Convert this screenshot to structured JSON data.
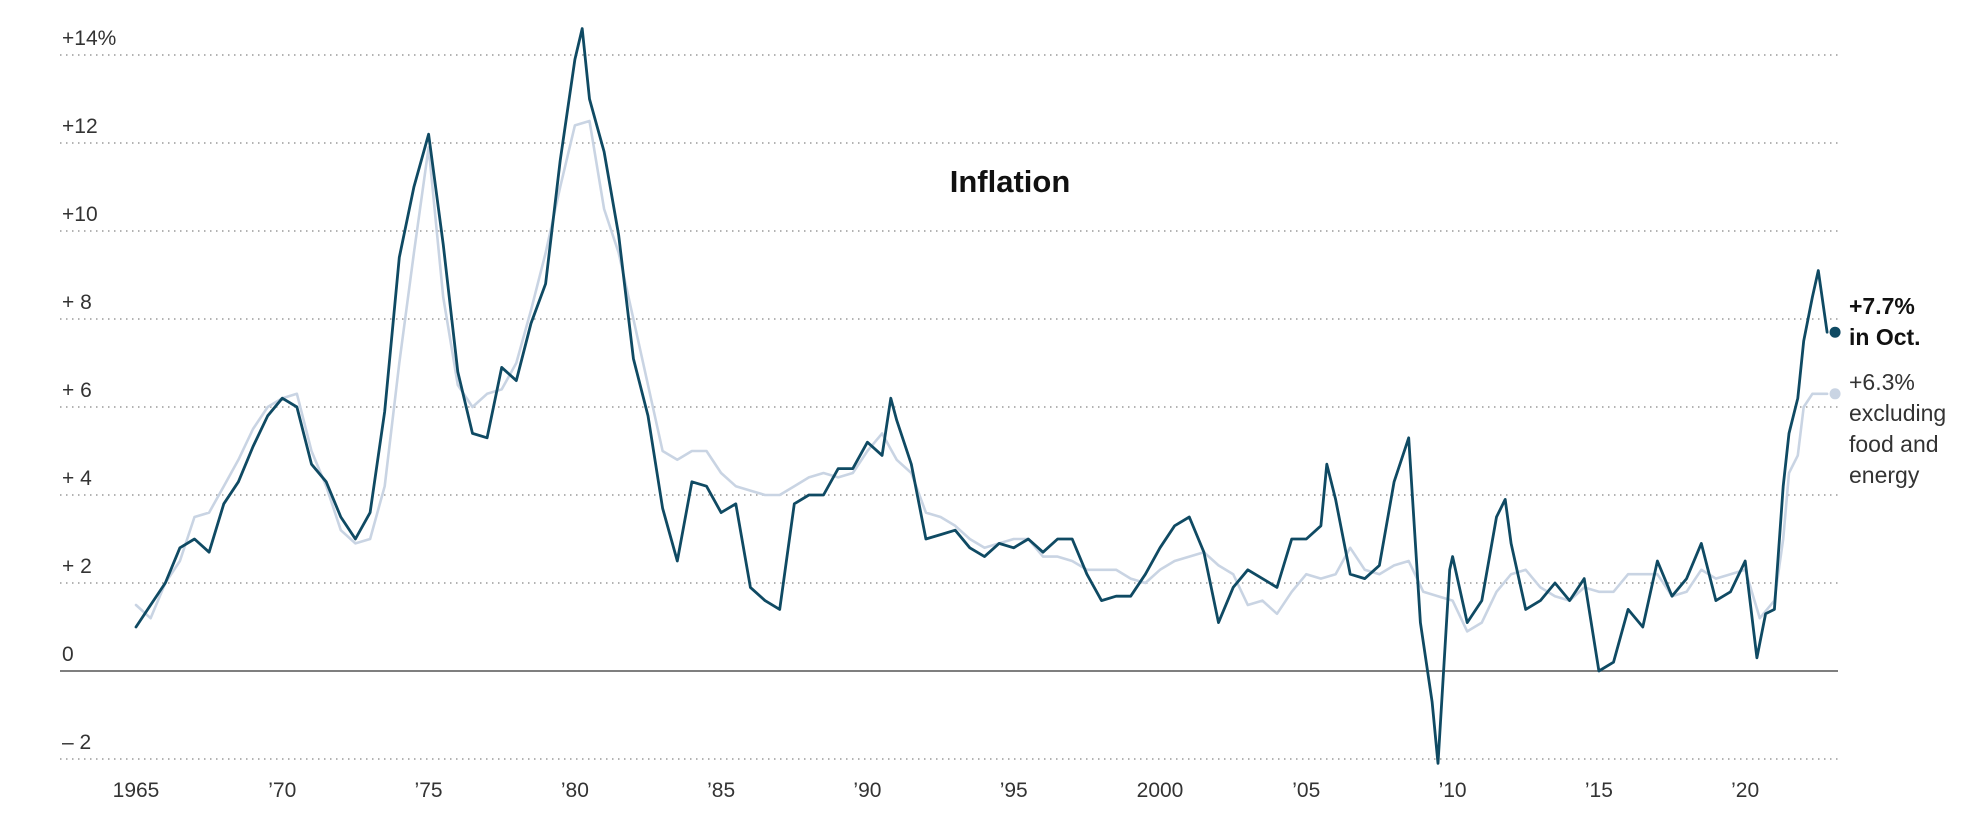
{
  "chart_data": {
    "type": "line",
    "title": "Inflation",
    "xlabel": "",
    "ylabel": "",
    "xlim": [
      1965.0,
      2022.9
    ],
    "ylim": [
      -2.2,
      14.7
    ],
    "y_ticks": [
      {
        "value": 14,
        "label": "+14%"
      },
      {
        "value": 12,
        "label": "+12"
      },
      {
        "value": 10,
        "label": "+10"
      },
      {
        "value": 8,
        "label": "+ 8"
      },
      {
        "value": 6,
        "label": "+ 6"
      },
      {
        "value": 4,
        "label": "+ 4"
      },
      {
        "value": 2,
        "label": "+ 2"
      },
      {
        "value": 0,
        "label": "0"
      },
      {
        "value": -2,
        "label": "– 2"
      }
    ],
    "x_ticks": [
      {
        "value": 1965,
        "label": "1965"
      },
      {
        "value": 1970,
        "label": "’70"
      },
      {
        "value": 1975,
        "label": "’75"
      },
      {
        "value": 1980,
        "label": "’80"
      },
      {
        "value": 1985,
        "label": "’85"
      },
      {
        "value": 1990,
        "label": "’90"
      },
      {
        "value": 1995,
        "label": "’95"
      },
      {
        "value": 2000,
        "label": "2000"
      },
      {
        "value": 2005,
        "label": "’05"
      },
      {
        "value": 2010,
        "label": "’10"
      },
      {
        "value": 2015,
        "label": "’15"
      },
      {
        "value": 2020,
        "label": "’20"
      }
    ],
    "grid": true,
    "series": [
      {
        "name": "",
        "color": "#0f4a63",
        "annotation": [
          "+7.7%",
          "in Oct."
        ],
        "x": [
          1965.0,
          1965.5,
          1966.0,
          1966.5,
          1967.0,
          1967.5,
          1968.0,
          1968.5,
          1969.0,
          1969.5,
          1970.0,
          1970.5,
          1971.0,
          1971.5,
          1972.0,
          1972.5,
          1973.0,
          1973.5,
          1974.0,
          1974.5,
          1975.0,
          1975.5,
          1976.0,
          1976.5,
          1977.0,
          1977.5,
          1978.0,
          1978.5,
          1979.0,
          1979.5,
          1980.0,
          1980.25,
          1980.5,
          1981.0,
          1981.5,
          1982.0,
          1982.5,
          1983.0,
          1983.5,
          1984.0,
          1984.5,
          1985.0,
          1985.5,
          1986.0,
          1986.5,
          1987.0,
          1987.5,
          1988.0,
          1988.5,
          1989.0,
          1989.5,
          1990.0,
          1990.5,
          1990.8,
          1991.0,
          1991.5,
          1992.0,
          1992.5,
          1993.0,
          1993.5,
          1994.0,
          1994.5,
          1995.0,
          1995.5,
          1996.0,
          1996.5,
          1997.0,
          1997.5,
          1998.0,
          1998.5,
          1999.0,
          1999.5,
          2000.0,
          2000.5,
          2001.0,
          2001.5,
          2002.0,
          2002.5,
          2003.0,
          2003.5,
          2004.0,
          2004.5,
          2005.0,
          2005.5,
          2005.7,
          2006.0,
          2006.5,
          2007.0,
          2007.5,
          2008.0,
          2008.5,
          2008.9,
          2009.3,
          2009.5,
          2009.9,
          2010.0,
          2010.5,
          2011.0,
          2011.5,
          2011.8,
          2012.0,
          2012.5,
          2013.0,
          2013.5,
          2014.0,
          2014.5,
          2015.0,
          2015.5,
          2016.0,
          2016.5,
          2017.0,
          2017.5,
          2018.0,
          2018.5,
          2019.0,
          2019.5,
          2020.0,
          2020.4,
          2020.7,
          2021.0,
          2021.3,
          2021.5,
          2021.8,
          2022.0,
          2022.3,
          2022.5,
          2022.8
        ],
        "y": [
          1.0,
          1.5,
          2.0,
          2.8,
          3.0,
          2.7,
          3.8,
          4.3,
          5.1,
          5.8,
          6.2,
          6.0,
          4.7,
          4.3,
          3.5,
          3.0,
          3.6,
          5.9,
          9.4,
          11.0,
          12.2,
          9.7,
          6.8,
          5.4,
          5.3,
          6.9,
          6.6,
          7.9,
          8.8,
          11.6,
          13.9,
          14.6,
          13.0,
          11.8,
          9.9,
          7.1,
          5.8,
          3.7,
          2.5,
          4.3,
          4.2,
          3.6,
          3.8,
          1.9,
          1.6,
          1.4,
          3.8,
          4.0,
          4.0,
          4.6,
          4.6,
          5.2,
          4.9,
          6.2,
          5.7,
          4.7,
          3.0,
          3.1,
          3.2,
          2.8,
          2.6,
          2.9,
          2.8,
          3.0,
          2.7,
          3.0,
          3.0,
          2.2,
          1.6,
          1.7,
          1.7,
          2.2,
          2.8,
          3.3,
          3.5,
          2.7,
          1.1,
          1.9,
          2.3,
          2.1,
          1.9,
          3.0,
          3.0,
          3.3,
          4.7,
          3.9,
          2.2,
          2.1,
          2.4,
          4.3,
          5.3,
          1.1,
          -0.7,
          -2.1,
          2.3,
          2.6,
          1.1,
          1.6,
          3.5,
          3.9,
          2.9,
          1.4,
          1.6,
          2.0,
          1.6,
          2.1,
          0.0,
          0.2,
          1.4,
          1.0,
          2.5,
          1.7,
          2.1,
          2.9,
          1.6,
          1.8,
          2.5,
          0.3,
          1.3,
          1.4,
          4.2,
          5.4,
          6.2,
          7.5,
          8.5,
          9.1,
          7.7
        ]
      },
      {
        "name": "",
        "color": "#c9d4e3",
        "annotation": [
          "+6.3%",
          "excluding",
          "food and",
          "energy"
        ],
        "x": [
          1965.0,
          1965.5,
          1966.0,
          1966.5,
          1967.0,
          1967.5,
          1968.0,
          1968.5,
          1969.0,
          1969.5,
          1970.0,
          1970.5,
          1971.0,
          1971.5,
          1972.0,
          1972.5,
          1973.0,
          1973.5,
          1974.0,
          1974.5,
          1975.0,
          1975.5,
          1976.0,
          1976.5,
          1977.0,
          1977.5,
          1978.0,
          1978.5,
          1979.0,
          1979.5,
          1980.0,
          1980.5,
          1981.0,
          1981.5,
          1982.0,
          1982.5,
          1983.0,
          1983.5,
          1984.0,
          1984.5,
          1985.0,
          1985.5,
          1986.0,
          1986.5,
          1987.0,
          1987.5,
          1988.0,
          1988.5,
          1989.0,
          1989.5,
          1990.0,
          1990.5,
          1991.0,
          1991.5,
          1992.0,
          1992.5,
          1993.0,
          1993.5,
          1994.0,
          1994.5,
          1995.0,
          1995.5,
          1996.0,
          1996.5,
          1997.0,
          1997.5,
          1998.0,
          1998.5,
          1999.0,
          1999.5,
          2000.0,
          2000.5,
          2001.0,
          2001.5,
          2002.0,
          2002.5,
          2003.0,
          2003.5,
          2004.0,
          2004.5,
          2005.0,
          2005.5,
          2006.0,
          2006.5,
          2007.0,
          2007.5,
          2008.0,
          2008.5,
          2009.0,
          2009.5,
          2010.0,
          2010.5,
          2011.0,
          2011.5,
          2012.0,
          2012.5,
          2013.0,
          2013.5,
          2014.0,
          2014.5,
          2015.0,
          2015.5,
          2016.0,
          2016.5,
          2017.0,
          2017.5,
          2018.0,
          2018.5,
          2019.0,
          2019.5,
          2020.0,
          2020.5,
          2021.0,
          2021.3,
          2021.5,
          2021.8,
          2022.0,
          2022.3,
          2022.5,
          2022.8
        ],
        "y": [
          1.5,
          1.2,
          2.0,
          2.5,
          3.5,
          3.6,
          4.2,
          4.8,
          5.5,
          6.0,
          6.2,
          6.3,
          5.0,
          4.2,
          3.2,
          2.9,
          3.0,
          4.2,
          7.0,
          9.5,
          11.9,
          8.5,
          6.5,
          6.0,
          6.3,
          6.4,
          7.0,
          8.2,
          9.5,
          11.0,
          12.4,
          12.5,
          10.5,
          9.5,
          8.0,
          6.5,
          5.0,
          4.8,
          5.0,
          5.0,
          4.5,
          4.2,
          4.1,
          4.0,
          4.0,
          4.2,
          4.4,
          4.5,
          4.4,
          4.5,
          5.0,
          5.4,
          4.8,
          4.5,
          3.6,
          3.5,
          3.3,
          3.0,
          2.8,
          2.9,
          3.0,
          3.0,
          2.6,
          2.6,
          2.5,
          2.3,
          2.3,
          2.3,
          2.1,
          2.0,
          2.3,
          2.5,
          2.6,
          2.7,
          2.4,
          2.2,
          1.5,
          1.6,
          1.3,
          1.8,
          2.2,
          2.1,
          2.2,
          2.8,
          2.3,
          2.2,
          2.4,
          2.5,
          1.8,
          1.7,
          1.6,
          0.9,
          1.1,
          1.8,
          2.2,
          2.3,
          1.9,
          1.7,
          1.6,
          1.9,
          1.8,
          1.8,
          2.2,
          2.2,
          2.2,
          1.7,
          1.8,
          2.3,
          2.1,
          2.2,
          2.3,
          1.2,
          1.6,
          3.0,
          4.5,
          4.9,
          6.0,
          6.3,
          6.3,
          6.3
        ]
      }
    ]
  }
}
